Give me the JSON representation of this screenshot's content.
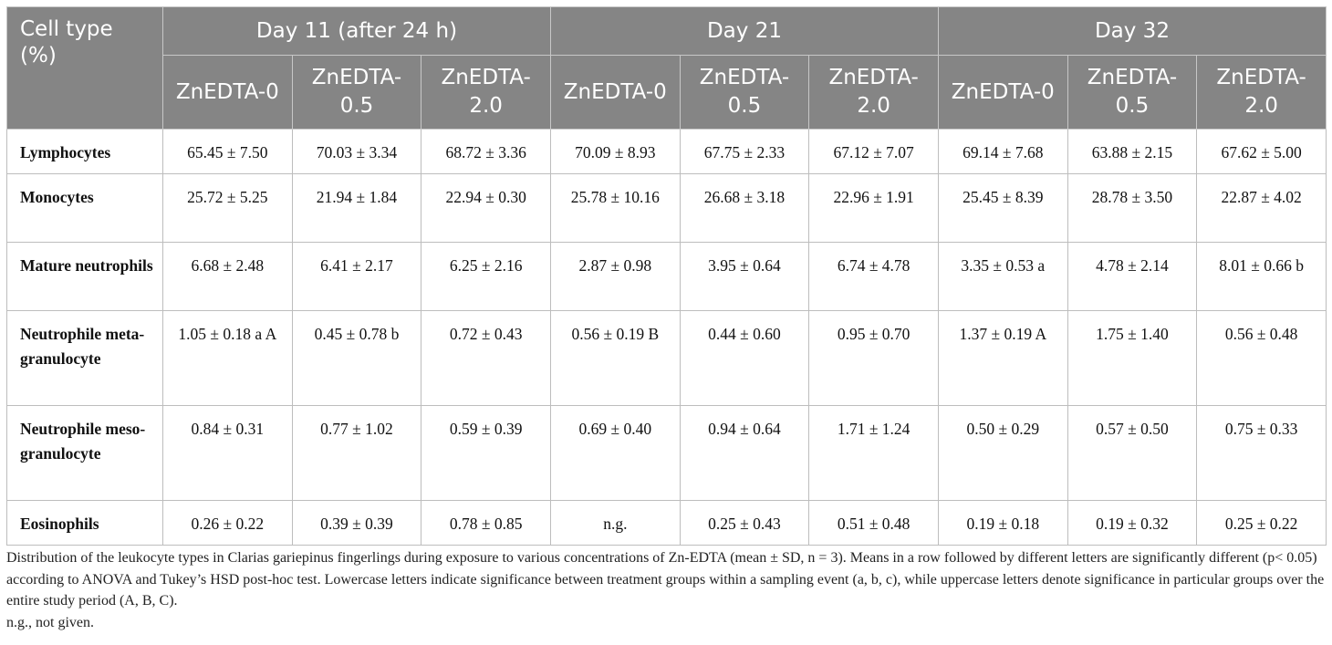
{
  "header": {
    "cell_type_label": "Cell type (%)",
    "groups": [
      "Day 11 (after 24 h)",
      "Day 21",
      "Day 32"
    ],
    "treatments": [
      "ZnEDTA-0",
      "ZnEDTA-0.5",
      "ZnEDTA-2.0",
      "ZnEDTA-0",
      "ZnEDTA-0.5",
      "ZnEDTA-2.0",
      "ZnEDTA-0",
      "ZnEDTA-0.5",
      "ZnEDTA-2.0"
    ]
  },
  "rows": [
    {
      "type": "Lymphocytes",
      "values": [
        "65.45 ± 7.50",
        "70.03 ± 3.34",
        "68.72 ± 3.36",
        "70.09 ± 8.93",
        "67.75 ± 2.33",
        "67.12 ± 7.07",
        "69.14 ± 7.68",
        "63.88 ± 2.15",
        "67.62 ± 5.00"
      ]
    },
    {
      "type": "Monocytes",
      "values": [
        "25.72 ± 5.25",
        "21.94 ± 1.84",
        "22.94 ± 0.30",
        "25.78 ± 10.16",
        "26.68 ± 3.18",
        "22.96 ± 1.91",
        "25.45 ± 8.39",
        "28.78 ± 3.50",
        "22.87 ± 4.02"
      ]
    },
    {
      "type": "Mature neutrophils",
      "values": [
        "6.68 ± 2.48",
        "6.41 ± 2.17",
        "6.25 ± 2.16",
        "2.87 ± 0.98",
        "3.95 ± 0.64",
        "6.74 ± 4.78",
        "3.35 ± 0.53 a",
        "4.78 ± 2.14",
        "8.01 ± 0.66 b"
      ]
    },
    {
      "type": "Neutrophile meta-granulocyte",
      "values": [
        "1.05 ± 0.18 a A",
        "0.45 ± 0.78 b",
        "0.72 ± 0.43",
        "0.56 ± 0.19 B",
        "0.44 ± 0.60",
        "0.95 ± 0.70",
        "1.37 ± 0.19 A",
        "1.75 ± 1.40",
        "0.56 ± 0.48"
      ]
    },
    {
      "type": "Neutrophile meso-granulocyte",
      "values": [
        "0.84 ± 0.31",
        "0.77 ± 1.02",
        "0.59 ± 0.39",
        "0.69 ± 0.40",
        "0.94 ± 0.64",
        "1.71 ± 1.24",
        "0.50 ± 0.29",
        "0.57 ± 0.50",
        "0.75 ± 0.33"
      ]
    },
    {
      "type": "Eosinophils",
      "values": [
        "0.26 ± 0.22",
        "0.39 ± 0.39",
        "0.78 ± 0.85",
        "n.g.",
        "0.25 ± 0.43",
        "0.51 ± 0.48",
        "0.19 ± 0.18",
        "0.19 ± 0.32",
        "0.25 ± 0.22"
      ]
    }
  ],
  "caption": {
    "text": "Distribution of the leukocyte types in Clarias gariepinus fingerlings during exposure to various concentrations of Zn-EDTA (mean ± SD, n = 3). Means in a row followed by different letters are significantly different (p< 0.05) according to ANOVA and Tukey’s HSD post-hoc test. Lowercase letters indicate significance between treatment groups within a sampling event (a, b, c), while uppercase letters denote significance in particular groups over the entire study period (A, B, C).",
    "note": "n.g., not given."
  },
  "colors": {
    "header_background": "#858585",
    "header_text": "#ffffff",
    "grid_line": "#bdbdbd"
  }
}
